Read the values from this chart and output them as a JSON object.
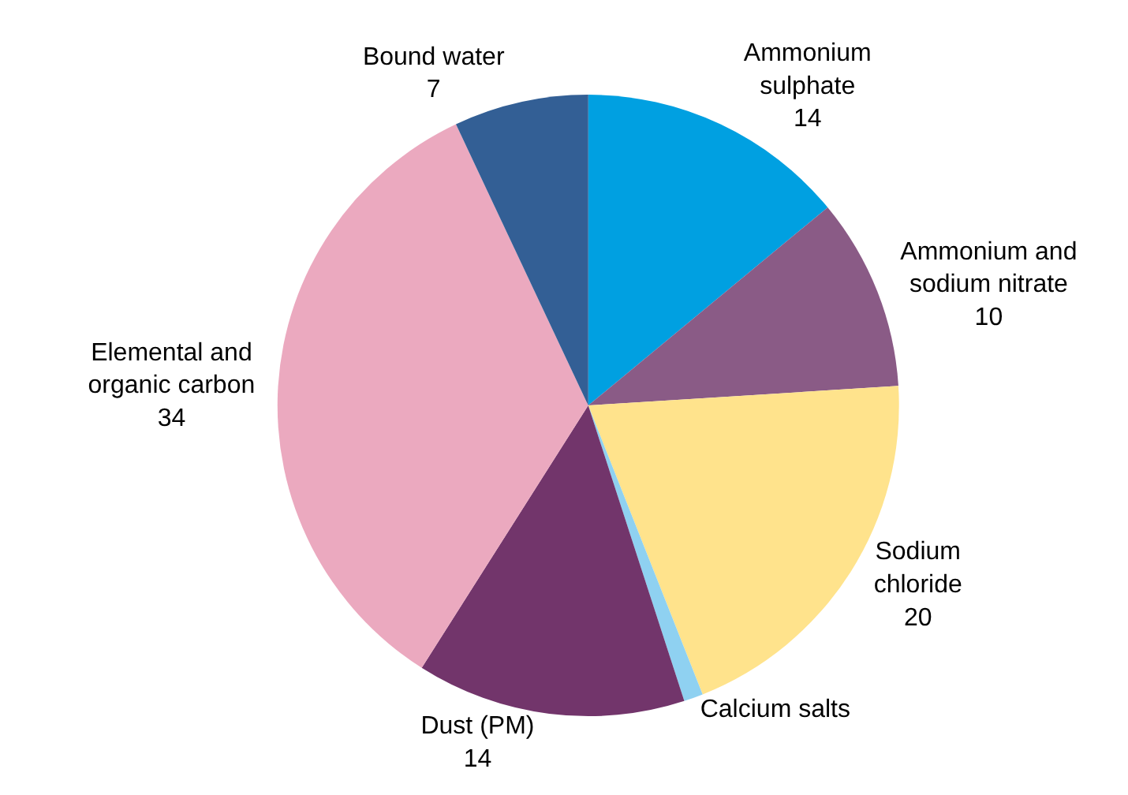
{
  "chart_data": {
    "type": "pie",
    "categories": [
      "Ammonium sulphate",
      "Ammonium and sodium nitrate",
      "Sodium chloride",
      "Calcium salts",
      "Dust (PM)",
      "Elemental and organic carbon",
      "Bound water"
    ],
    "values": [
      14,
      10,
      20,
      1,
      14,
      34,
      7
    ],
    "value_labels": [
      "14",
      "10",
      "20",
      null,
      "14",
      "34",
      "7"
    ],
    "colors": [
      "#00a0e1",
      "#8a5b86",
      "#ffe38c",
      "#8fd1f1",
      "#72356b",
      "#eba9bf",
      "#335f95"
    ],
    "legend": false
  }
}
